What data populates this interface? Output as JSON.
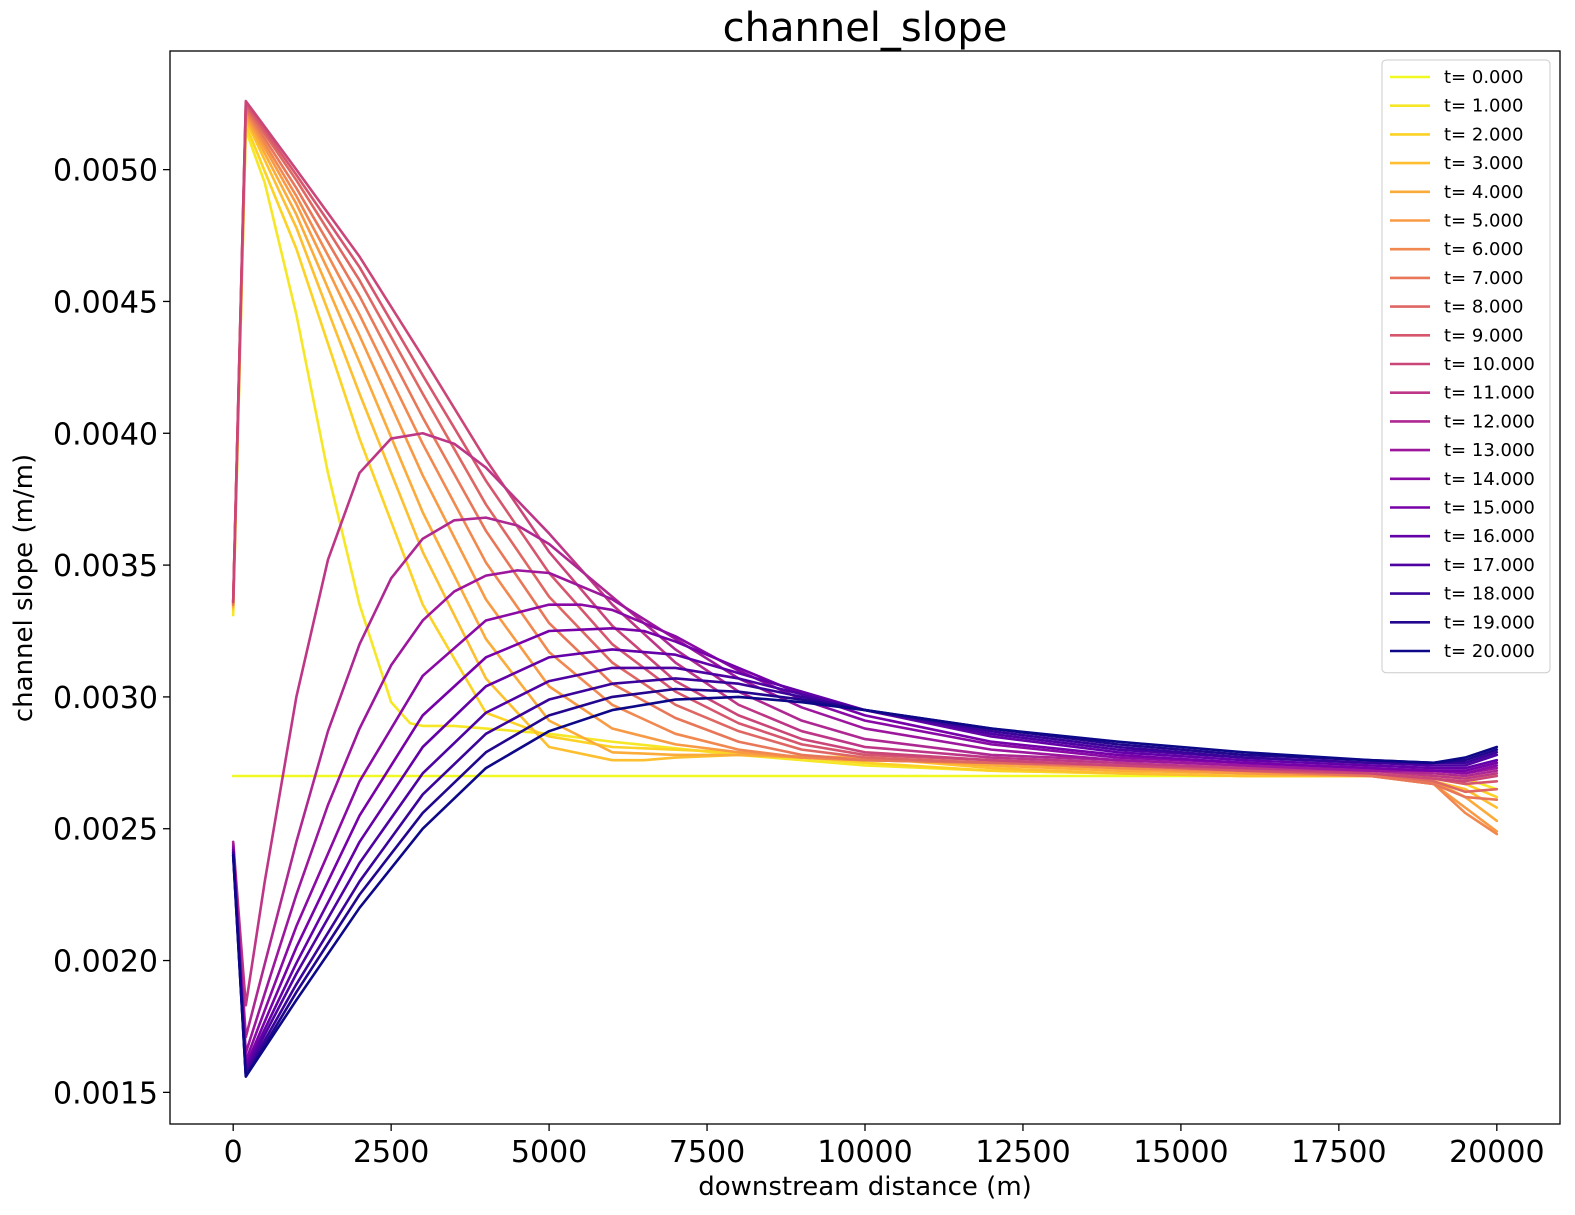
{
  "chart_data": {
    "type": "line",
    "title": "channel_slope",
    "xlabel": "downstream distance (m)",
    "ylabel": "channel slope (m/m)",
    "xlim": [
      -1000,
      21000
    ],
    "ylim": [
      0.00138,
      0.00545
    ],
    "xticks": [
      0,
      2500,
      5000,
      7500,
      10000,
      12500,
      15000,
      17500,
      20000
    ],
    "xtick_labels": [
      "0",
      "2500",
      "5000",
      "7500",
      "10000",
      "12500",
      "15000",
      "17500",
      "20000"
    ],
    "yticks": [
      0.0015,
      0.002,
      0.0025,
      0.003,
      0.0035,
      0.004,
      0.0045,
      0.005
    ],
    "ytick_labels": [
      "0.0015",
      "0.0020",
      "0.0025",
      "0.0030",
      "0.0035",
      "0.0040",
      "0.0045",
      "0.0050"
    ],
    "grid": false,
    "legend_position": "top-right",
    "colormap": "plasma (t=0 yellow → t=20 dark blue)",
    "series": [
      {
        "name": "t= 0.000",
        "color": "#f0f921",
        "x": [
          0,
          200,
          20000
        ],
        "y": [
          0.0027,
          0.0027,
          0.0027
        ]
      },
      {
        "name": "t= 1.000",
        "color": "#f6e726",
        "x": [
          0,
          200,
          500,
          1000,
          1500,
          2000,
          2500,
          2800,
          3000,
          3500,
          4000,
          5000,
          6000,
          8000,
          10000,
          12000,
          14000,
          16000,
          18000,
          19000,
          19500,
          20000
        ],
        "y": [
          0.00331,
          0.00515,
          0.00495,
          0.00445,
          0.00385,
          0.00335,
          0.00298,
          0.0029,
          0.00289,
          0.00289,
          0.00288,
          0.00286,
          0.00283,
          0.00278,
          0.00274,
          0.00272,
          0.00271,
          0.0027,
          0.0027,
          0.0027,
          0.00269,
          0.00265
        ]
      },
      {
        "name": "t= 2.000",
        "color": "#fcd225",
        "x": [
          0,
          200,
          1000,
          2000,
          3000,
          4000,
          5000,
          6000,
          7000,
          8000,
          10000,
          12000,
          14000,
          16000,
          18000,
          19000,
          19500,
          20000
        ],
        "y": [
          0.00333,
          0.00517,
          0.0047,
          0.00398,
          0.00335,
          0.00294,
          0.00285,
          0.00281,
          0.0028,
          0.00279,
          0.00275,
          0.00272,
          0.00271,
          0.0027,
          0.0027,
          0.00269,
          0.00267,
          0.00262
        ]
      },
      {
        "name": "t= 3.000",
        "color": "#fdbf2f",
        "x": [
          0,
          200,
          1000,
          2000,
          3000,
          4000,
          5000,
          6000,
          6500,
          7000,
          8000,
          10000,
          12000,
          14000,
          16000,
          18000,
          19000,
          19500,
          20000
        ],
        "y": [
          0.00334,
          0.00519,
          0.00478,
          0.00415,
          0.00355,
          0.00307,
          0.00281,
          0.00276,
          0.00276,
          0.00277,
          0.00278,
          0.00277,
          0.00273,
          0.00271,
          0.0027,
          0.0027,
          0.00268,
          0.00265,
          0.00258
        ]
      },
      {
        "name": "t= 4.000",
        "color": "#fbab3a",
        "x": [
          0,
          200,
          1000,
          2000,
          3000,
          4000,
          5000,
          6000,
          7000,
          8000,
          9000,
          10000,
          12000,
          14000,
          16000,
          18000,
          19000,
          19500,
          20000
        ],
        "y": [
          0.00334,
          0.0052,
          0.00483,
          0.00427,
          0.0037,
          0.00322,
          0.00291,
          0.00279,
          0.00278,
          0.00278,
          0.00277,
          0.00277,
          0.00274,
          0.00272,
          0.00271,
          0.0027,
          0.00268,
          0.00262,
          0.00253
        ]
      },
      {
        "name": "t= 5.000",
        "color": "#f89a44",
        "x": [
          0,
          200,
          1000,
          2000,
          3000,
          4000,
          5000,
          6000,
          7000,
          8000,
          9000,
          10000,
          12000,
          14000,
          16000,
          18000,
          19000,
          19500,
          20000
        ],
        "y": [
          0.00335,
          0.00521,
          0.00487,
          0.00437,
          0.00384,
          0.00337,
          0.00304,
          0.00288,
          0.00282,
          0.00279,
          0.00277,
          0.00276,
          0.00275,
          0.00273,
          0.00271,
          0.0027,
          0.00267,
          0.00258,
          0.00249
        ]
      },
      {
        "name": "t= 6.000",
        "color": "#f1884f",
        "x": [
          0,
          200,
          1000,
          2000,
          3000,
          4000,
          5000,
          6000,
          7000,
          8000,
          9000,
          10000,
          12000,
          14000,
          16000,
          18000,
          19000,
          19500,
          20000
        ],
        "y": [
          0.00335,
          0.00522,
          0.0049,
          0.00445,
          0.00396,
          0.00351,
          0.00317,
          0.00297,
          0.00286,
          0.0028,
          0.00277,
          0.00276,
          0.00275,
          0.00273,
          0.00272,
          0.0027,
          0.00267,
          0.00256,
          0.00248
        ]
      },
      {
        "name": "t= 7.000",
        "color": "#e87759",
        "x": [
          0,
          200,
          1000,
          2000,
          3000,
          4000,
          5000,
          6000,
          7000,
          8000,
          9000,
          10000,
          12000,
          14000,
          16000,
          18000,
          19000,
          19500,
          20000
        ],
        "y": [
          0.00335,
          0.00523,
          0.00493,
          0.00452,
          0.00406,
          0.00363,
          0.00328,
          0.00305,
          0.00292,
          0.00283,
          0.00278,
          0.00276,
          0.00275,
          0.00274,
          0.00272,
          0.0027,
          0.00267,
          0.00262,
          0.00261
        ]
      },
      {
        "name": "t= 8.000",
        "color": "#df6763",
        "x": [
          0,
          200,
          1000,
          2000,
          3000,
          4000,
          5000,
          6000,
          7000,
          8000,
          9000,
          10000,
          12000,
          14000,
          16000,
          18000,
          19000,
          19500,
          20000
        ],
        "y": [
          0.00336,
          0.00524,
          0.00496,
          0.00458,
          0.00415,
          0.00373,
          0.00338,
          0.00313,
          0.00297,
          0.00287,
          0.0028,
          0.00277,
          0.00275,
          0.00274,
          0.00272,
          0.00271,
          0.00268,
          0.00264,
          0.00265
        ]
      },
      {
        "name": "t= 9.000",
        "color": "#d5566d",
        "x": [
          0,
          200,
          1000,
          2000,
          3000,
          4000,
          5000,
          6000,
          7000,
          8000,
          9000,
          10000,
          12000,
          14000,
          16000,
          18000,
          19000,
          19500,
          20000
        ],
        "y": [
          0.00336,
          0.00525,
          0.00498,
          0.00463,
          0.00422,
          0.00382,
          0.00347,
          0.0032,
          0.00302,
          0.0029,
          0.00282,
          0.00278,
          0.00276,
          0.00274,
          0.00272,
          0.00271,
          0.00269,
          0.00267,
          0.00268
        ]
      },
      {
        "name": "t= 10.000",
        "color": "#ca4678",
        "x": [
          0,
          200,
          1000,
          2000,
          3000,
          4000,
          5000,
          6000,
          7000,
          8000,
          9000,
          10000,
          12000,
          14000,
          16000,
          18000,
          19000,
          19500,
          20000
        ],
        "y": [
          0.00336,
          0.00526,
          0.005,
          0.00467,
          0.00429,
          0.0039,
          0.00355,
          0.00327,
          0.00306,
          0.00293,
          0.00284,
          0.00279,
          0.00276,
          0.00274,
          0.00273,
          0.00271,
          0.00269,
          0.00268,
          0.0027
        ]
      },
      {
        "name": "t= 11.000",
        "color": "#bd3786",
        "x": [
          0,
          200,
          500,
          1000,
          1500,
          2000,
          2500,
          3000,
          3500,
          4000,
          5000,
          6000,
          7000,
          8000,
          9000,
          10000,
          12000,
          14000,
          16000,
          18000,
          19000,
          19500,
          20000
        ],
        "y": [
          0.00245,
          0.00183,
          0.0023,
          0.003,
          0.00352,
          0.00385,
          0.00398,
          0.004,
          0.00396,
          0.00387,
          0.00362,
          0.00335,
          0.00313,
          0.00297,
          0.00287,
          0.00281,
          0.00277,
          0.00275,
          0.00273,
          0.00272,
          0.0027,
          0.00269,
          0.00271
        ]
      },
      {
        "name": "t= 12.000",
        "color": "#ae2892",
        "x": [
          0,
          200,
          1000,
          1500,
          2000,
          2500,
          3000,
          3500,
          4000,
          4500,
          5000,
          6000,
          7000,
          8000,
          9000,
          10000,
          12000,
          14000,
          16000,
          18000,
          19000,
          19500,
          20000
        ],
        "y": [
          0.00245,
          0.00171,
          0.00245,
          0.00287,
          0.0032,
          0.00345,
          0.0036,
          0.00367,
          0.00368,
          0.00365,
          0.00358,
          0.00338,
          0.00318,
          0.00302,
          0.00291,
          0.00284,
          0.00278,
          0.00276,
          0.00274,
          0.00272,
          0.00271,
          0.0027,
          0.00272
        ]
      },
      {
        "name": "t= 13.000",
        "color": "#9c179e",
        "x": [
          0,
          200,
          1000,
          1500,
          2000,
          2500,
          3000,
          3500,
          4000,
          4500,
          5000,
          6000,
          7000,
          8000,
          9000,
          10000,
          12000,
          14000,
          16000,
          18000,
          19000,
          19500,
          20000
        ],
        "y": [
          0.00244,
          0.00165,
          0.00225,
          0.00259,
          0.00288,
          0.00312,
          0.00329,
          0.0034,
          0.00346,
          0.00348,
          0.00347,
          0.00337,
          0.00322,
          0.00307,
          0.00296,
          0.00288,
          0.0028,
          0.00276,
          0.00274,
          0.00272,
          0.00272,
          0.00271,
          0.00273
        ]
      },
      {
        "name": "t= 14.000",
        "color": "#8a0aa5",
        "x": [
          0,
          200,
          1000,
          2000,
          3000,
          4000,
          5000,
          5500,
          6000,
          7000,
          8000,
          9000,
          10000,
          12000,
          14000,
          16000,
          18000,
          19000,
          19500,
          20000
        ],
        "y": [
          0.00243,
          0.00162,
          0.00213,
          0.00268,
          0.00308,
          0.00329,
          0.00335,
          0.00335,
          0.00333,
          0.00323,
          0.0031,
          0.00299,
          0.00291,
          0.00282,
          0.00277,
          0.00275,
          0.00273,
          0.00272,
          0.00271,
          0.00274
        ]
      },
      {
        "name": "t= 15.000",
        "color": "#7701a8",
        "x": [
          0,
          200,
          1000,
          2000,
          3000,
          4000,
          5000,
          6000,
          6500,
          7000,
          8000,
          9000,
          10000,
          12000,
          14000,
          16000,
          18000,
          19000,
          19500,
          20000
        ],
        "y": [
          0.00242,
          0.0016,
          0.00205,
          0.00255,
          0.00293,
          0.00315,
          0.00325,
          0.00326,
          0.00325,
          0.00321,
          0.00311,
          0.00301,
          0.00293,
          0.00283,
          0.00278,
          0.00275,
          0.00273,
          0.00272,
          0.00272,
          0.00275
        ]
      },
      {
        "name": "t= 16.000",
        "color": "#6300a7",
        "x": [
          0,
          200,
          1000,
          2000,
          3000,
          4000,
          5000,
          6000,
          7000,
          8000,
          9000,
          10000,
          12000,
          14000,
          16000,
          18000,
          19000,
          19500,
          20000
        ],
        "y": [
          0.00242,
          0.00159,
          0.00199,
          0.00245,
          0.00281,
          0.00304,
          0.00315,
          0.00318,
          0.00316,
          0.00309,
          0.00302,
          0.00295,
          0.00285,
          0.00279,
          0.00276,
          0.00274,
          0.00273,
          0.00273,
          0.00276
        ]
      },
      {
        "name": "t= 17.000",
        "color": "#4e02a2",
        "x": [
          0,
          200,
          1000,
          2000,
          3000,
          4000,
          5000,
          6000,
          7000,
          8000,
          9000,
          10000,
          12000,
          14000,
          16000,
          18000,
          19000,
          19500,
          20000
        ],
        "y": [
          0.00241,
          0.00158,
          0.00195,
          0.00237,
          0.00271,
          0.00294,
          0.00306,
          0.00311,
          0.00311,
          0.00307,
          0.00301,
          0.00295,
          0.00286,
          0.0028,
          0.00277,
          0.00275,
          0.00274,
          0.00274,
          0.00278
        ]
      },
      {
        "name": "t= 18.000",
        "color": "#3a049a",
        "x": [
          0,
          200,
          1000,
          2000,
          3000,
          4000,
          5000,
          6000,
          7000,
          8000,
          9000,
          10000,
          12000,
          14000,
          16000,
          18000,
          19000,
          19500,
          20000
        ],
        "y": [
          0.00241,
          0.00157,
          0.00191,
          0.0023,
          0.00263,
          0.00286,
          0.00299,
          0.00305,
          0.00307,
          0.00305,
          0.003,
          0.00295,
          0.00287,
          0.00281,
          0.00277,
          0.00275,
          0.00275,
          0.00275,
          0.00279
        ]
      },
      {
        "name": "t= 19.000",
        "color": "#22068d",
        "x": [
          0,
          200,
          1000,
          2000,
          3000,
          4000,
          5000,
          6000,
          7000,
          8000,
          9000,
          10000,
          12000,
          14000,
          16000,
          18000,
          19000,
          19500,
          20000
        ],
        "y": [
          0.0024,
          0.00156,
          0.00188,
          0.00225,
          0.00256,
          0.00279,
          0.00293,
          0.003,
          0.00303,
          0.00302,
          0.00299,
          0.00295,
          0.00288,
          0.00282,
          0.00278,
          0.00276,
          0.00275,
          0.00276,
          0.0028
        ]
      },
      {
        "name": "t= 20.000",
        "color": "#0d0887",
        "x": [
          0,
          200,
          1000,
          2000,
          3000,
          4000,
          5000,
          6000,
          7000,
          8000,
          9000,
          10000,
          12000,
          14000,
          16000,
          18000,
          19000,
          19500,
          20000
        ],
        "y": [
          0.0024,
          0.00156,
          0.00185,
          0.0022,
          0.0025,
          0.00273,
          0.00287,
          0.00295,
          0.00299,
          0.003,
          0.00298,
          0.00295,
          0.00288,
          0.00283,
          0.00279,
          0.00276,
          0.00275,
          0.00277,
          0.00281
        ]
      }
    ]
  }
}
